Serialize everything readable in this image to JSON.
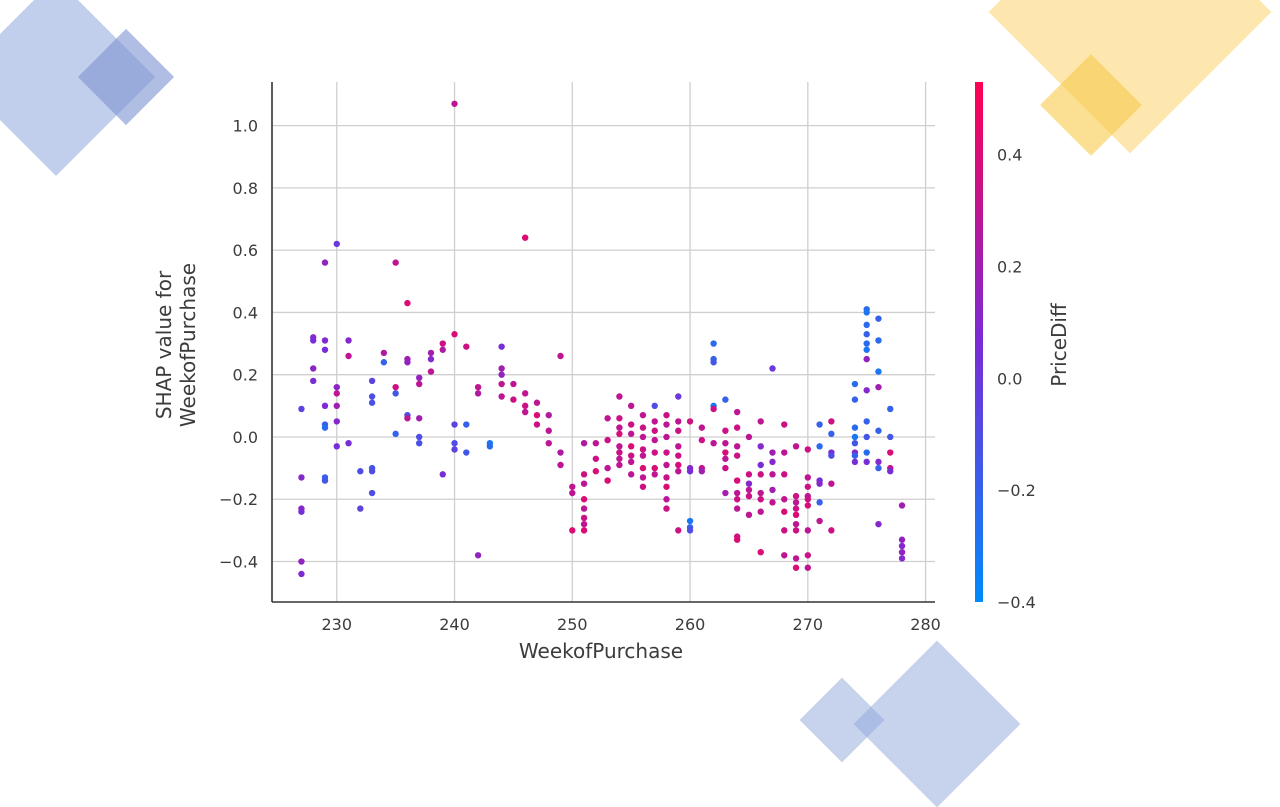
{
  "decor_colors": {
    "blue": "#8fa8dc",
    "blue_dark": "#7b93d1",
    "yellow": "#fbd46c",
    "yellow_dark": "#f9c94b"
  },
  "chart_data": {
    "type": "scatter",
    "title": "",
    "xlabel": "WeekofPurchase",
    "ylabel_lines": [
      "SHAP value for",
      "WeekofPurchase"
    ],
    "xlim": [
      224.5,
      280.8
    ],
    "ylim": [
      -0.53,
      1.14
    ],
    "xticks": [
      230,
      240,
      250,
      260,
      270,
      280
    ],
    "yticks": [
      -0.4,
      -0.2,
      0.0,
      0.2,
      0.4,
      0.6,
      0.8,
      1.0
    ],
    "ytick_labels": [
      "−0.4",
      "−0.2",
      "0.0",
      "0.2",
      "0.4",
      "0.6",
      "0.8",
      "1.0"
    ],
    "grid": true,
    "colorbar": {
      "label": "PriceDiff",
      "range": [
        -0.4,
        0.53
      ],
      "ticks": [
        -0.4,
        -0.2,
        0.0,
        0.2,
        0.4
      ],
      "tick_labels": [
        "−0.4",
        "−0.2",
        "0.0",
        "0.2",
        "0.4"
      ],
      "colors": [
        "#008afb",
        "#7b2bd6",
        "#ff0051"
      ]
    },
    "points": [
      [
        227,
        0.09,
        -0.05
      ],
      [
        227,
        -0.13,
        0.1
      ],
      [
        227,
        -0.23,
        0.12
      ],
      [
        227,
        -0.24,
        0.05
      ],
      [
        227,
        -0.4,
        0.15
      ],
      [
        227,
        -0.44,
        0.08
      ],
      [
        228,
        0.32,
        0.1
      ],
      [
        228,
        0.31,
        0.05
      ],
      [
        228,
        0.22,
        0.12
      ],
      [
        228,
        0.18,
        0.06
      ],
      [
        229,
        0.56,
        0.15
      ],
      [
        229,
        0.31,
        0.1
      ],
      [
        229,
        0.28,
        0.05
      ],
      [
        229,
        0.1,
        0.08
      ],
      [
        229,
        0.04,
        -0.2
      ],
      [
        229,
        0.03,
        -0.25
      ],
      [
        229,
        -0.13,
        -0.2
      ],
      [
        229,
        -0.14,
        -0.15
      ],
      [
        230,
        0.62,
        0.0
      ],
      [
        230,
        0.16,
        0.12
      ],
      [
        230,
        0.14,
        0.3
      ],
      [
        230,
        0.1,
        0.2
      ],
      [
        230,
        0.05,
        0.1
      ],
      [
        230,
        -0.03,
        0.05
      ],
      [
        231,
        0.31,
        0.1
      ],
      [
        231,
        0.26,
        0.3
      ],
      [
        231,
        -0.02,
        0.05
      ],
      [
        232,
        -0.11,
        -0.1
      ],
      [
        232,
        -0.23,
        -0.05
      ],
      [
        233,
        0.18,
        -0.05
      ],
      [
        233,
        0.13,
        -0.1
      ],
      [
        233,
        0.11,
        -0.12
      ],
      [
        233,
        -0.1,
        -0.15
      ],
      [
        233,
        -0.11,
        -0.1
      ],
      [
        233,
        -0.18,
        -0.1
      ],
      [
        234,
        0.27,
        0.25
      ],
      [
        234,
        0.24,
        -0.2
      ],
      [
        235,
        0.56,
        0.3
      ],
      [
        235,
        0.16,
        0.35
      ],
      [
        235,
        0.14,
        -0.15
      ],
      [
        235,
        0.01,
        -0.2
      ],
      [
        236,
        0.43,
        0.4
      ],
      [
        236,
        0.25,
        0.2
      ],
      [
        236,
        0.24,
        0.15
      ],
      [
        236,
        0.07,
        -0.1
      ],
      [
        236,
        0.06,
        0.3
      ],
      [
        237,
        0.19,
        0.15
      ],
      [
        237,
        0.17,
        0.3
      ],
      [
        237,
        0.06,
        0.2
      ],
      [
        237,
        0.0,
        -0.1
      ],
      [
        237,
        -0.02,
        -0.12
      ],
      [
        238,
        0.27,
        0.2
      ],
      [
        238,
        0.25,
        0.1
      ],
      [
        238,
        0.21,
        0.3
      ],
      [
        239,
        0.3,
        0.35
      ],
      [
        239,
        0.28,
        0.25
      ],
      [
        239,
        -0.12,
        0.05
      ],
      [
        240,
        1.07,
        0.3
      ],
      [
        240,
        0.33,
        0.4
      ],
      [
        240,
        0.04,
        -0.05
      ],
      [
        240,
        -0.02,
        -0.1
      ],
      [
        240,
        -0.04,
        -0.05
      ],
      [
        241,
        0.29,
        0.35
      ],
      [
        241,
        0.04,
        -0.2
      ],
      [
        241,
        -0.05,
        -0.15
      ],
      [
        242,
        0.16,
        0.3
      ],
      [
        242,
        0.14,
        0.25
      ],
      [
        242,
        -0.38,
        0.15
      ],
      [
        243,
        -0.02,
        -0.3
      ],
      [
        243,
        -0.03,
        -0.25
      ],
      [
        244,
        0.29,
        0.05
      ],
      [
        244,
        0.22,
        0.2
      ],
      [
        244,
        0.2,
        0.15
      ],
      [
        244,
        0.17,
        0.3
      ],
      [
        244,
        0.13,
        0.3
      ],
      [
        245,
        0.17,
        0.3
      ],
      [
        245,
        0.12,
        0.35
      ],
      [
        246,
        0.64,
        0.4
      ],
      [
        246,
        0.14,
        0.3
      ],
      [
        246,
        0.1,
        0.35
      ],
      [
        246,
        0.08,
        0.3
      ],
      [
        247,
        0.11,
        0.3
      ],
      [
        247,
        0.07,
        0.4
      ],
      [
        247,
        0.04,
        0.35
      ],
      [
        248,
        0.07,
        0.25
      ],
      [
        248,
        0.02,
        0.3
      ],
      [
        248,
        -0.02,
        0.3
      ],
      [
        249,
        0.26,
        0.3
      ],
      [
        249,
        -0.05,
        0.25
      ],
      [
        249,
        -0.09,
        0.3
      ],
      [
        250,
        -0.16,
        0.3
      ],
      [
        250,
        -0.18,
        0.3
      ],
      [
        250,
        -0.3,
        0.4
      ],
      [
        251,
        -0.02,
        0.25
      ],
      [
        251,
        -0.12,
        0.35
      ],
      [
        251,
        -0.15,
        0.3
      ],
      [
        251,
        -0.2,
        0.4
      ],
      [
        251,
        -0.23,
        0.3
      ],
      [
        251,
        -0.26,
        0.35
      ],
      [
        251,
        -0.28,
        0.3
      ],
      [
        251,
        -0.3,
        0.4
      ],
      [
        252,
        -0.02,
        0.3
      ],
      [
        252,
        -0.07,
        0.35
      ],
      [
        252,
        -0.11,
        0.4
      ],
      [
        253,
        0.06,
        0.3
      ],
      [
        253,
        -0.01,
        0.35
      ],
      [
        253,
        -0.1,
        0.3
      ],
      [
        253,
        -0.14,
        0.4
      ],
      [
        254,
        0.13,
        0.3
      ],
      [
        254,
        0.06,
        0.35
      ],
      [
        254,
        0.03,
        0.3
      ],
      [
        254,
        0.01,
        0.4
      ],
      [
        254,
        -0.03,
        0.3
      ],
      [
        254,
        -0.05,
        0.35
      ],
      [
        254,
        -0.07,
        0.3
      ],
      [
        254,
        -0.09,
        0.3
      ],
      [
        255,
        0.1,
        0.3
      ],
      [
        255,
        0.04,
        0.35
      ],
      [
        255,
        0.01,
        0.3
      ],
      [
        255,
        -0.03,
        0.4
      ],
      [
        255,
        -0.06,
        0.35
      ],
      [
        255,
        -0.08,
        0.3
      ],
      [
        255,
        -0.12,
        0.3
      ],
      [
        256,
        0.07,
        0.3
      ],
      [
        256,
        0.03,
        0.35
      ],
      [
        256,
        0.0,
        0.3
      ],
      [
        256,
        -0.04,
        0.35
      ],
      [
        256,
        -0.06,
        0.3
      ],
      [
        256,
        -0.1,
        0.4
      ],
      [
        256,
        -0.13,
        0.3
      ],
      [
        256,
        -0.16,
        0.35
      ],
      [
        257,
        0.1,
        -0.1
      ],
      [
        257,
        0.05,
        0.3
      ],
      [
        257,
        0.02,
        0.35
      ],
      [
        257,
        -0.01,
        0.3
      ],
      [
        257,
        -0.05,
        0.35
      ],
      [
        257,
        -0.1,
        0.4
      ],
      [
        257,
        -0.12,
        0.3
      ],
      [
        258,
        0.07,
        0.35
      ],
      [
        258,
        0.04,
        0.3
      ],
      [
        258,
        0.0,
        0.3
      ],
      [
        258,
        -0.05,
        0.35
      ],
      [
        258,
        -0.09,
        0.3
      ],
      [
        258,
        -0.13,
        0.35
      ],
      [
        258,
        -0.16,
        0.4
      ],
      [
        258,
        -0.2,
        0.3
      ],
      [
        258,
        -0.23,
        0.35
      ],
      [
        259,
        0.13,
        0.0
      ],
      [
        259,
        0.05,
        0.3
      ],
      [
        259,
        0.02,
        0.35
      ],
      [
        259,
        -0.03,
        0.3
      ],
      [
        259,
        -0.06,
        0.35
      ],
      [
        259,
        -0.09,
        0.4
      ],
      [
        259,
        -0.11,
        0.3
      ],
      [
        259,
        -0.3,
        0.35
      ],
      [
        260,
        0.05,
        0.35
      ],
      [
        260,
        -0.1,
        0.1
      ],
      [
        260,
        -0.11,
        0.05
      ],
      [
        260,
        -0.27,
        -0.3
      ],
      [
        260,
        -0.29,
        -0.2
      ],
      [
        260,
        -0.3,
        -0.1
      ],
      [
        261,
        0.03,
        0.3
      ],
      [
        261,
        -0.01,
        0.35
      ],
      [
        261,
        -0.1,
        0.3
      ],
      [
        261,
        -0.11,
        0.2
      ],
      [
        262,
        0.3,
        -0.25
      ],
      [
        262,
        0.25,
        -0.2
      ],
      [
        262,
        0.24,
        -0.15
      ],
      [
        262,
        0.1,
        -0.3
      ],
      [
        262,
        0.09,
        0.35
      ],
      [
        262,
        -0.02,
        0.3
      ],
      [
        263,
        0.12,
        -0.2
      ],
      [
        263,
        0.02,
        0.35
      ],
      [
        263,
        -0.02,
        0.3
      ],
      [
        263,
        -0.05,
        0.4
      ],
      [
        263,
        -0.07,
        0.3
      ],
      [
        263,
        -0.1,
        0.35
      ],
      [
        263,
        -0.18,
        0.2
      ],
      [
        264,
        0.08,
        0.3
      ],
      [
        264,
        0.03,
        0.35
      ],
      [
        264,
        -0.03,
        0.3
      ],
      [
        264,
        -0.06,
        0.35
      ],
      [
        264,
        -0.14,
        0.4
      ],
      [
        264,
        -0.18,
        0.3
      ],
      [
        264,
        -0.2,
        0.35
      ],
      [
        264,
        -0.23,
        0.3
      ],
      [
        264,
        -0.32,
        0.35
      ],
      [
        264,
        -0.33,
        0.4
      ],
      [
        265,
        0.0,
        0.3
      ],
      [
        265,
        -0.12,
        0.35
      ],
      [
        265,
        -0.15,
        0.1
      ],
      [
        265,
        -0.17,
        0.3
      ],
      [
        265,
        -0.19,
        0.35
      ],
      [
        265,
        -0.25,
        0.3
      ],
      [
        266,
        0.05,
        0.3
      ],
      [
        266,
        -0.03,
        0.1
      ],
      [
        266,
        -0.09,
        0.05
      ],
      [
        266,
        -0.12,
        0.35
      ],
      [
        266,
        -0.18,
        0.3
      ],
      [
        266,
        -0.2,
        0.35
      ],
      [
        266,
        -0.24,
        0.3
      ],
      [
        266,
        -0.37,
        0.4
      ],
      [
        267,
        0.22,
        0.0
      ],
      [
        267,
        -0.05,
        0.2
      ],
      [
        267,
        -0.08,
        0.1
      ],
      [
        267,
        -0.12,
        0.3
      ],
      [
        267,
        -0.17,
        0.2
      ],
      [
        267,
        -0.21,
        0.3
      ],
      [
        268,
        0.04,
        0.35
      ],
      [
        268,
        -0.05,
        0.3
      ],
      [
        268,
        -0.12,
        0.35
      ],
      [
        268,
        -0.2,
        0.3
      ],
      [
        268,
        -0.24,
        0.4
      ],
      [
        268,
        -0.3,
        0.35
      ],
      [
        268,
        -0.38,
        0.3
      ],
      [
        269,
        -0.03,
        0.3
      ],
      [
        269,
        -0.19,
        0.35
      ],
      [
        269,
        -0.21,
        0.3
      ],
      [
        269,
        -0.23,
        0.35
      ],
      [
        269,
        -0.25,
        0.4
      ],
      [
        269,
        -0.28,
        0.3
      ],
      [
        269,
        -0.3,
        0.35
      ],
      [
        269,
        -0.39,
        0.3
      ],
      [
        269,
        -0.42,
        0.4
      ],
      [
        270,
        -0.04,
        0.35
      ],
      [
        270,
        -0.13,
        0.3
      ],
      [
        270,
        -0.16,
        0.35
      ],
      [
        270,
        -0.19,
        0.3
      ],
      [
        270,
        -0.2,
        0.35
      ],
      [
        270,
        -0.22,
        0.4
      ],
      [
        270,
        -0.3,
        0.3
      ],
      [
        270,
        -0.38,
        0.35
      ],
      [
        270,
        -0.42,
        0.3
      ],
      [
        271,
        0.04,
        -0.2
      ],
      [
        271,
        -0.03,
        -0.25
      ],
      [
        271,
        -0.14,
        0.05
      ],
      [
        271,
        -0.15,
        0.1
      ],
      [
        271,
        -0.21,
        -0.2
      ],
      [
        271,
        -0.27,
        0.3
      ],
      [
        272,
        0.05,
        0.35
      ],
      [
        272,
        0.01,
        -0.2
      ],
      [
        272,
        -0.05,
        0.05
      ],
      [
        272,
        -0.06,
        -0.1
      ],
      [
        272,
        -0.15,
        0.3
      ],
      [
        272,
        -0.3,
        0.35
      ],
      [
        274,
        0.17,
        -0.25
      ],
      [
        274,
        0.12,
        -0.2
      ],
      [
        274,
        0.03,
        -0.25
      ],
      [
        274,
        0.0,
        -0.3
      ],
      [
        274,
        -0.02,
        -0.15
      ],
      [
        274,
        -0.05,
        0.1
      ],
      [
        274,
        -0.06,
        -0.2
      ],
      [
        274,
        -0.08,
        0.05
      ],
      [
        275,
        0.41,
        -0.25
      ],
      [
        275,
        0.4,
        -0.3
      ],
      [
        275,
        0.36,
        -0.25
      ],
      [
        275,
        0.33,
        -0.2
      ],
      [
        275,
        0.3,
        -0.25
      ],
      [
        275,
        0.28,
        -0.3
      ],
      [
        275,
        0.25,
        0.15
      ],
      [
        275,
        0.15,
        0.1
      ],
      [
        275,
        0.05,
        -0.2
      ],
      [
        275,
        0.0,
        -0.15
      ],
      [
        275,
        -0.05,
        -0.25
      ],
      [
        275,
        -0.08,
        0.05
      ],
      [
        276,
        0.38,
        -0.2
      ],
      [
        276,
        0.31,
        -0.25
      ],
      [
        276,
        0.21,
        -0.3
      ],
      [
        276,
        0.16,
        0.2
      ],
      [
        276,
        0.02,
        -0.2
      ],
      [
        276,
        -0.08,
        0.1
      ],
      [
        276,
        -0.1,
        -0.2
      ],
      [
        276,
        -0.28,
        0.1
      ],
      [
        277,
        0.09,
        -0.2
      ],
      [
        277,
        0.0,
        -0.15
      ],
      [
        277,
        -0.05,
        0.4
      ],
      [
        277,
        -0.1,
        0.3
      ],
      [
        277,
        -0.11,
        0.05
      ],
      [
        278,
        -0.22,
        0.2
      ],
      [
        278,
        -0.33,
        0.15
      ],
      [
        278,
        -0.35,
        0.1
      ],
      [
        278,
        -0.37,
        0.15
      ],
      [
        278,
        -0.39,
        0.1
      ]
    ]
  }
}
